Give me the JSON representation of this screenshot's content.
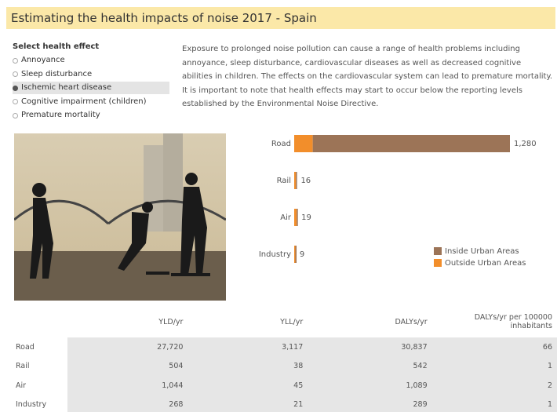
{
  "header": {
    "title": "Estimating the health impacts of noise 2017 - Spain"
  },
  "filter": {
    "label": "Select health effect",
    "options": [
      "Annoyance",
      "Sleep disturbance",
      "Ischemic heart disease",
      "Cognitive impairment (children)",
      "Premature mortality"
    ],
    "selected": 2
  },
  "description": "Exposure to prolonged noise pollution can cause a range of health problems including annoyance, sleep disturbance, cardiovascular diseases as well as decreased cognitive abilities in children.  The effects on the cardiovascular system can lead to premature mortality. It is important to note that health effects may start to occur below the reporting levels established by the Environmental Noise Directive.",
  "chart_data": {
    "type": "stacked-bar-horizontal",
    "categories": [
      "Road",
      "Rail",
      "Air",
      "Industry"
    ],
    "series": [
      {
        "name": "Inside Urban Areas",
        "color": "#9c7457",
        "values": [
          1170,
          6,
          4,
          7
        ]
      },
      {
        "name": "Outside Urban Areas",
        "color": "#f28e2b",
        "values": [
          110,
          10,
          15,
          2
        ]
      }
    ],
    "totals": [
      1280,
      16,
      19,
      9
    ],
    "total_labels": [
      "1,280",
      "16",
      "19",
      "9"
    ],
    "legend": "lower-right"
  },
  "table": {
    "header": [
      "",
      "YLD/yr",
      "YLL/yr",
      "DALYs/yr",
      "DALYs/yr per 100000 inhabitants"
    ],
    "rows": [
      [
        "Road",
        "27,720",
        "3,117",
        "30,837",
        "66"
      ],
      [
        "Rail",
        "504",
        "38",
        "542",
        "1"
      ],
      [
        "Air",
        "1,044",
        "45",
        "1,089",
        "2"
      ],
      [
        "Industry",
        "268",
        "21",
        "289",
        "1"
      ]
    ]
  }
}
